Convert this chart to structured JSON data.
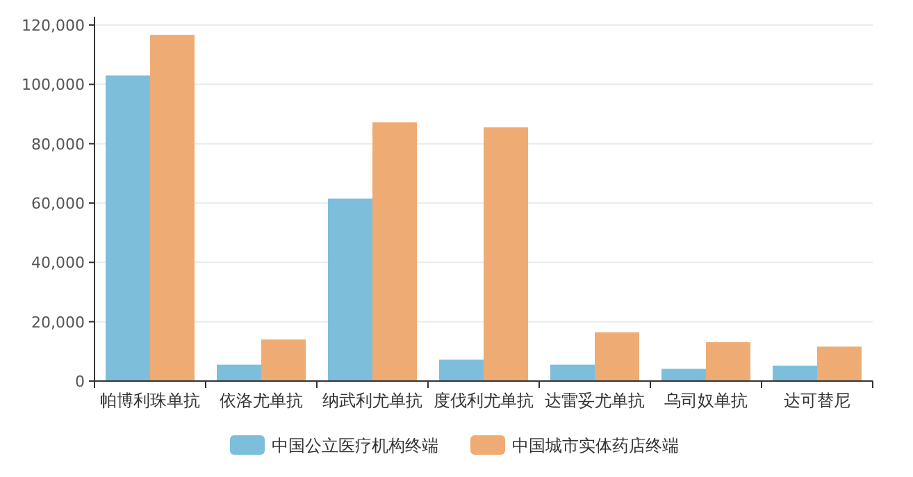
{
  "chart_data": {
    "type": "bar",
    "categories": [
      "帕博利珠单抗",
      "依洛尤单抗",
      "纳武利尤单抗",
      "度伐利尤单抗",
      "达雷妥尤单抗",
      "乌司奴单抗",
      "达可替尼"
    ],
    "series": [
      {
        "name": "中国公立医疗机构终端",
        "color": "#7dbedb",
        "values": [
          103000,
          5500,
          61500,
          7200,
          5500,
          4100,
          5200
        ]
      },
      {
        "name": "中国城市实体药店终端",
        "color": "#eeac74",
        "values": [
          116700,
          14000,
          87200,
          85500,
          16400,
          13100,
          11600
        ]
      }
    ],
    "ylim": [
      0,
      120000
    ],
    "yticks": [
      {
        "value": 0,
        "label": "0"
      },
      {
        "value": 20000,
        "label": "20,000"
      },
      {
        "value": 40000,
        "label": "40,000"
      },
      {
        "value": 60000,
        "label": "60,000"
      },
      {
        "value": 80000,
        "label": "80,000"
      },
      {
        "value": 100000,
        "label": "100,000"
      },
      {
        "value": 120000,
        "label": "120,000"
      }
    ],
    "grid": "y",
    "legend": "bottom"
  }
}
